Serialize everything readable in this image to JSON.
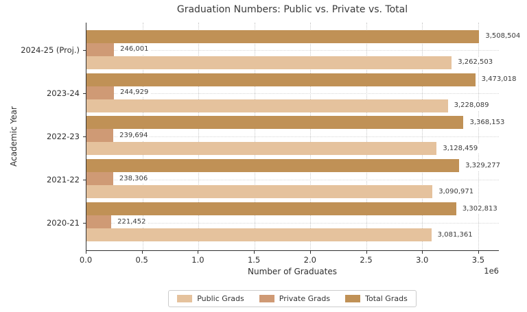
{
  "title": "Graduation Numbers: Public vs. Private vs. Total",
  "axes": {
    "xlabel": "Number of Graduates",
    "ylabel": "Academic Year",
    "offset_label": "1e6",
    "x_ticks": [
      "0.0",
      "0.5",
      "1.0",
      "1.5",
      "2.0",
      "2.5",
      "3.0",
      "3.5"
    ]
  },
  "legend": {
    "items": [
      {
        "label": "Public Grads",
        "color": "#e5c29d"
      },
      {
        "label": "Private Grads",
        "color": "#cf9a75"
      },
      {
        "label": "Total Grads",
        "color": "#c09156"
      }
    ]
  },
  "chart_data": {
    "type": "bar",
    "orientation": "horizontal",
    "title": "Graduation Numbers: Public vs. Private vs. Total",
    "xlabel": "Number of Graduates",
    "ylabel": "Academic Year",
    "x_scale_note": "x axis in units of 1e6",
    "xlim": [
      0,
      3684000
    ],
    "grid": true,
    "legend_position": "bottom-center",
    "categories_order": "top-to-bottom",
    "categories": [
      "2024-25 (Proj.)",
      "2023-24",
      "2022-23",
      "2021-22",
      "2020-21"
    ],
    "bar_order_top_to_bottom": [
      "Total Grads",
      "Private Grads",
      "Public Grads"
    ],
    "series": [
      {
        "name": "Public Grads",
        "key": "public",
        "color": "#e5c29d",
        "values": [
          3262503,
          3228089,
          3128459,
          3090971,
          3081361
        ]
      },
      {
        "name": "Private Grads",
        "key": "private",
        "color": "#cf9a75",
        "values": [
          246001,
          244929,
          239694,
          238306,
          221452
        ]
      },
      {
        "name": "Total Grads",
        "key": "total",
        "color": "#c09156",
        "values": [
          3508504,
          3473018,
          3368153,
          3329277,
          3302813
        ]
      }
    ]
  }
}
